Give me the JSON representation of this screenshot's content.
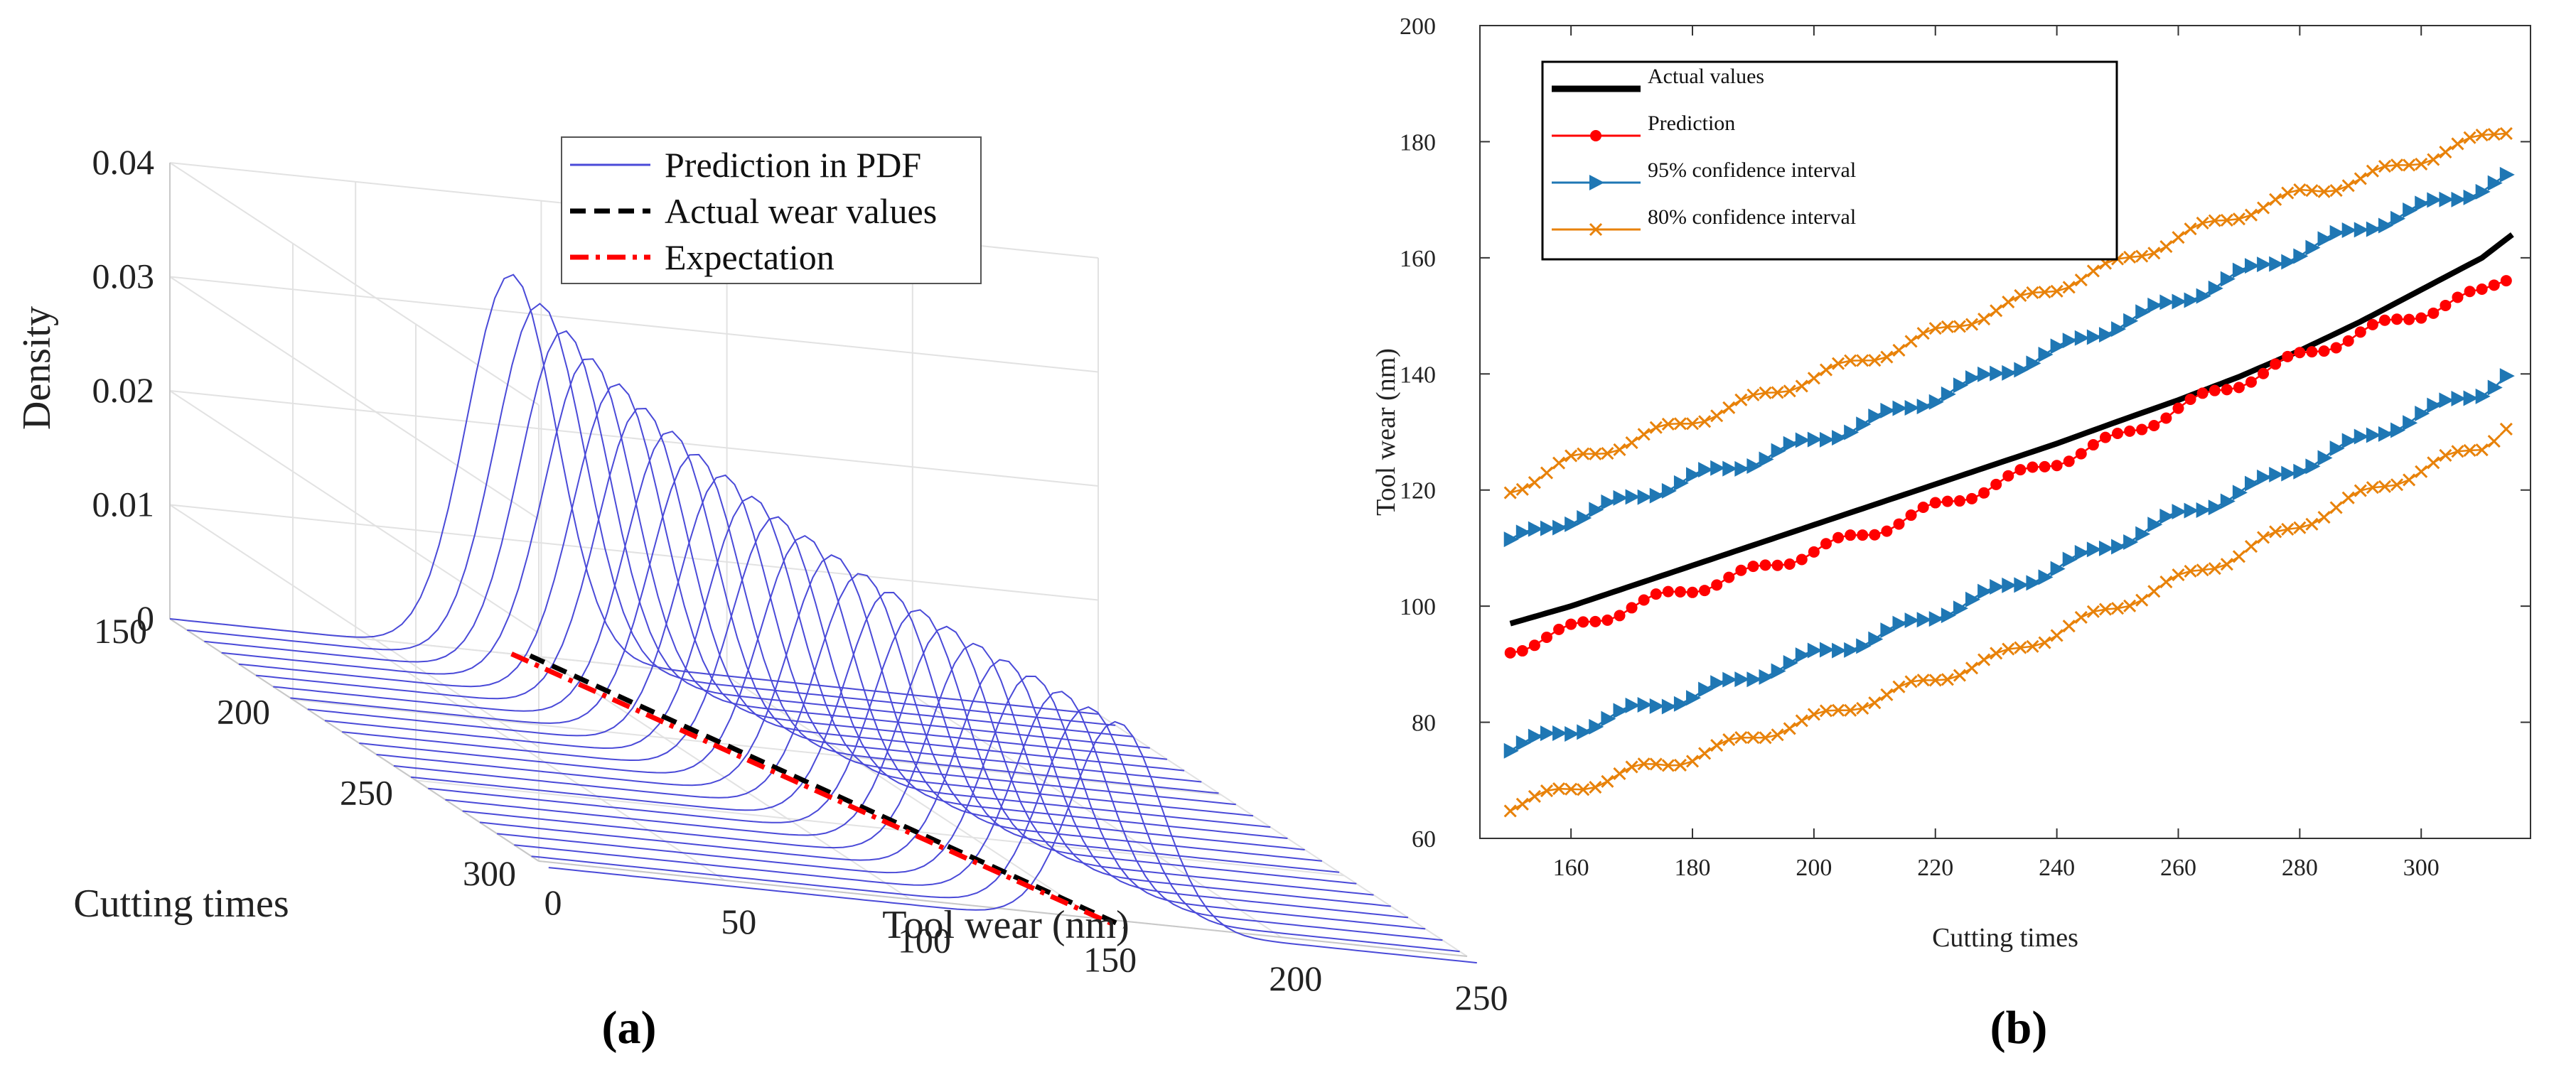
{
  "captions": {
    "a": "(a)",
    "b": "(b)"
  },
  "chart_data": [
    {
      "type": "line",
      "projection": "3d",
      "panel": "a",
      "title": "",
      "xlabel": "Tool wear (nm)",
      "ylabel": "Cutting times",
      "zlabel": "Density",
      "xlim": [
        0,
        250
      ],
      "ylim": [
        150,
        300
      ],
      "zlim": [
        0,
        0.04
      ],
      "xticks": [
        "0",
        "50",
        "100",
        "150",
        "200",
        "250"
      ],
      "yticks": [
        "150",
        "200",
        "250",
        "300"
      ],
      "zticks": [
        "0",
        "0.01",
        "0.02",
        "0.03",
        "0.04"
      ],
      "grid": true,
      "legend": {
        "position": "top-right",
        "entries": [
          "Prediction in PDF",
          "Actual wear values",
          "Expectation"
        ]
      },
      "colors": {
        "pdf": "#4a4ad8",
        "actual": "#000000",
        "expectation": "#ff0000"
      },
      "pdf_peaks": [
        {
          "t": 150,
          "mean": 92,
          "peak": 0.0333
        },
        {
          "t": 157,
          "mean": 95,
          "peak": 0.0318
        },
        {
          "t": 164,
          "mean": 97,
          "peak": 0.0305
        },
        {
          "t": 171,
          "mean": 99,
          "peak": 0.0292
        },
        {
          "t": 178,
          "mean": 102,
          "peak": 0.028
        },
        {
          "t": 185,
          "mean": 104,
          "peak": 0.027
        },
        {
          "t": 192,
          "mean": 107,
          "peak": 0.026
        },
        {
          "t": 199,
          "mean": 109,
          "peak": 0.0251
        },
        {
          "t": 206,
          "mean": 112,
          "peak": 0.0243
        },
        {
          "t": 213,
          "mean": 115,
          "peak": 0.0235
        },
        {
          "t": 220,
          "mean": 117,
          "peak": 0.0228
        },
        {
          "t": 227,
          "mean": 120,
          "peak": 0.0222
        },
        {
          "t": 234,
          "mean": 123,
          "peak": 0.0216
        },
        {
          "t": 241,
          "mean": 126,
          "peak": 0.0211
        },
        {
          "t": 248,
          "mean": 129,
          "peak": 0.0206
        },
        {
          "t": 255,
          "mean": 132,
          "peak": 0.0201
        },
        {
          "t": 262,
          "mean": 135,
          "peak": 0.0197
        },
        {
          "t": 269,
          "mean": 138,
          "peak": 0.0193
        },
        {
          "t": 276,
          "mean": 141,
          "peak": 0.019
        },
        {
          "t": 283,
          "mean": 144,
          "peak": 0.0187
        },
        {
          "t": 290,
          "mean": 147,
          "peak": 0.0184
        },
        {
          "t": 297,
          "mean": 150,
          "peak": 0.0181
        },
        {
          "t": 304,
          "mean": 153,
          "peak": 0.0179
        }
      ],
      "expectation_line": [
        [
          150,
          92
        ],
        [
          304,
          153
        ]
      ],
      "actual_line": [
        [
          150,
          97
        ],
        [
          304,
          155
        ]
      ]
    },
    {
      "type": "line",
      "panel": "b",
      "title": "",
      "xlabel": "Cutting times",
      "ylabel": "Tool wear (nm)",
      "xlim": [
        145,
        318
      ],
      "ylim": [
        60,
        200
      ],
      "xticks": [
        160,
        180,
        200,
        220,
        240,
        260,
        280,
        300
      ],
      "yticks": [
        60,
        80,
        100,
        120,
        140,
        160,
        180,
        200
      ],
      "grid": false,
      "legend": {
        "position": "top-left"
      },
      "series": [
        {
          "name": "Actual values",
          "color": "#000000",
          "marker": "none",
          "x": [
            150,
            160,
            170,
            180,
            190,
            200,
            210,
            220,
            230,
            240,
            250,
            260,
            270,
            280,
            290,
            300,
            310,
            315
          ],
          "y": [
            97,
            100,
            103.5,
            107,
            110.5,
            114,
            117.5,
            121,
            124.5,
            128,
            131.8,
            135.5,
            139.5,
            144,
            149,
            154.5,
            160,
            164
          ]
        },
        {
          "name": "Prediction",
          "color": "#ff0000",
          "marker": "dot",
          "x": [
            150,
            160,
            170,
            180,
            190,
            200,
            210,
            220,
            230,
            240,
            250,
            260,
            270,
            280,
            290,
            300,
            310,
            315
          ],
          "y": [
            92.5,
            96,
            100,
            103,
            106,
            109.5,
            113,
            117,
            121,
            125,
            129,
            134,
            138.5,
            143,
            147,
            150.5,
            154,
            157.5
          ]
        },
        {
          "name": "95% confidence interval",
          "color": "#1f77b4",
          "marker": "triangle-right",
          "x": [
            150,
            160,
            170,
            180,
            190,
            200,
            210,
            220,
            230,
            240,
            250,
            260,
            270,
            280,
            290,
            300,
            310,
            315
          ],
          "y": [
            111,
            115,
            118.5,
            122,
            125,
            128.5,
            132,
            136,
            140,
            144,
            148.5,
            152.5,
            157,
            161,
            165,
            168.5,
            172,
            174
          ],
          "lower_y": [
            75.5,
            78.5,
            82,
            84.5,
            88,
            91.5,
            94.5,
            98.5,
            102.5,
            106.5,
            111,
            115.5,
            119.5,
            124,
            128.5,
            133,
            137,
            140.5
          ]
        },
        {
          "name": "80% confidence interval",
          "color": "#e8820a",
          "marker": "x",
          "x": [
            150,
            160,
            170,
            180,
            190,
            200,
            210,
            220,
            230,
            240,
            250,
            260,
            270,
            280,
            290,
            300,
            310,
            315
          ],
          "y": [
            120,
            125,
            128.5,
            132,
            135.5,
            139.5,
            143,
            147,
            151,
            155,
            159,
            163.5,
            167.5,
            171,
            173.5,
            177,
            180.5,
            182.5
          ],
          "lower_y": [
            65.5,
            68.5,
            71.5,
            74,
            77.5,
            80.5,
            84,
            87.5,
            91,
            95.5,
            100,
            104.5,
            109,
            114,
            119,
            123.5,
            127.5,
            132
          ]
        }
      ]
    }
  ]
}
